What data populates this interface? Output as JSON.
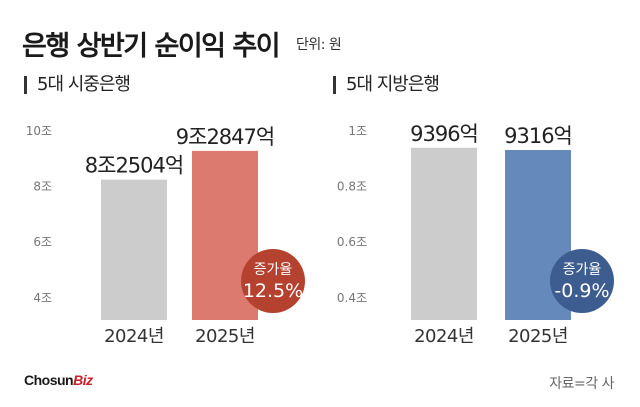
{
  "title": "은행 상반기 순이익 추이",
  "unit": "단위: 원",
  "chart_data": [
    {
      "type": "bar",
      "title": "5대 시중은행",
      "categories": [
        "2024년",
        "2025년"
      ],
      "values": [
        8.2504,
        9.2847
      ],
      "value_labels": [
        "8조2504억",
        "9조2847억"
      ],
      "y_ticks": [
        4,
        6,
        8,
        10
      ],
      "y_tick_labels": [
        "4조",
        "6조",
        "8조",
        "10조"
      ],
      "ylim": [
        3.2,
        10
      ],
      "bar_colors": [
        "#cccccc",
        "#dd7a70"
      ],
      "badge": {
        "caption": "증가율",
        "value": "12.5%",
        "color": "#b5412f"
      }
    },
    {
      "type": "bar",
      "title": "5대 지방은행",
      "categories": [
        "2024년",
        "2025년"
      ],
      "values": [
        0.9396,
        0.9316
      ],
      "value_labels": [
        "9396억",
        "9316억"
      ],
      "y_ticks": [
        0.4,
        0.6,
        0.8,
        1.0
      ],
      "y_tick_labels": [
        "0.4조",
        "0.6조",
        "0.8조",
        "1조"
      ],
      "ylim": [
        0.32,
        1.0
      ],
      "bar_colors": [
        "#cccccc",
        "#6689bb"
      ],
      "badge": {
        "caption": "증가율",
        "value": "-0.9%",
        "color": "#3d5d90"
      }
    }
  ],
  "logo": {
    "part1": "Chosun",
    "part2": "Biz"
  },
  "source": "자료=각 사"
}
